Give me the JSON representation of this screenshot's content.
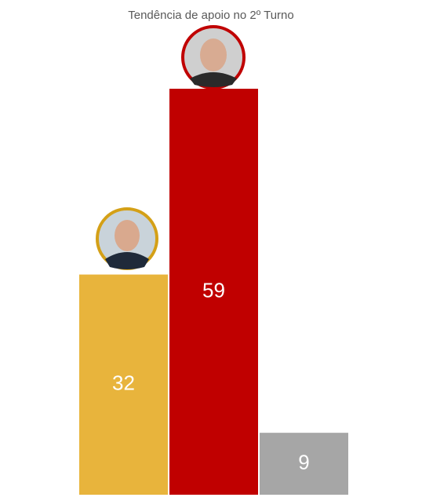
{
  "chart_data": {
    "type": "bar",
    "title": "Tendência de apoio no 2º Turno",
    "categories": [
      null,
      null,
      null
    ],
    "values": [
      32,
      59,
      9
    ],
    "colors": [
      "#E8B43C",
      "#C00000",
      "#A6A6A6"
    ]
  }
}
